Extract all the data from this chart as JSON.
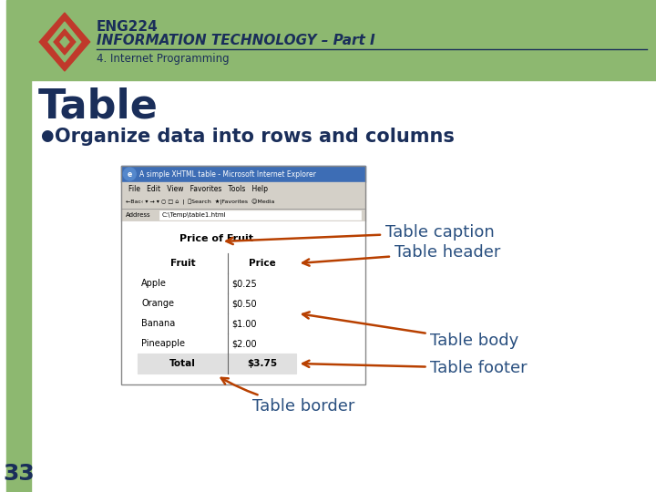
{
  "bg_color": "#ffffff",
  "left_bar_color": "#8db870",
  "header_bg": "#8db870",
  "header_text": "ENG224",
  "header_subtext": "INFORMATION TECHNOLOGY – Part I",
  "header_section": "4. Internet Programming",
  "title": "Table",
  "bullet": "Organize data into rows and columns",
  "slide_number": "33",
  "browser_title": "A simple XHTML table - Microsoft Internet Explorer",
  "browser_menu": "File   Edit   View   Favorites   Tools   Help",
  "browser_address": "C:\\Temp\\table1.html",
  "table_caption": "Price of Fruit",
  "table_headers": [
    "Fruit",
    "Price"
  ],
  "table_body": [
    [
      "Apple",
      "$0.25"
    ],
    [
      "Orange",
      "$0.50"
    ],
    [
      "Banana",
      "$1.00"
    ],
    [
      "Pineapple",
      "$2.00"
    ]
  ],
  "table_footer": [
    "Total",
    "$3.75"
  ],
  "annotation_caption": "Table caption",
  "annotation_header": "Table header",
  "annotation_body": "Table body",
  "annotation_footer": "Table footer",
  "annotation_border": "Table border",
  "dark_blue": "#1a2e5a",
  "annotation_color": "#2a5080",
  "arrow_color": "#b84000"
}
